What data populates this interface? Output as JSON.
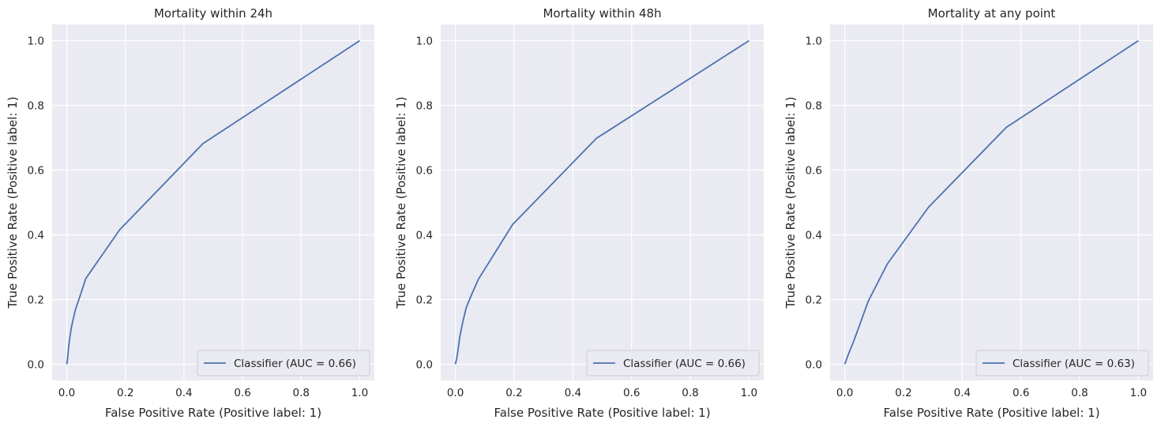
{
  "chart_data": [
    {
      "type": "line",
      "title": "Mortality within 24h",
      "xlabel": "False Positive Rate (Positive label: 1)",
      "ylabel": "True Positive Rate (Positive label: 1)",
      "xlim": [
        -0.05,
        1.05
      ],
      "ylim": [
        -0.05,
        1.05
      ],
      "xticks": [
        "0.0",
        "0.2",
        "0.4",
        "0.6",
        "0.8",
        "1.0"
      ],
      "yticks": [
        "0.0",
        "0.2",
        "0.4",
        "0.6",
        "0.8",
        "1.0"
      ],
      "grid": true,
      "legend_position": "lower right",
      "series": [
        {
          "name": "Classifier (AUC = 0.66)",
          "color": "#4c72b0",
          "x": [
            0.0,
            0.003,
            0.006,
            0.01,
            0.015,
            0.022,
            0.03,
            0.045,
            0.065,
            0.18,
            0.465,
            1.0
          ],
          "y": [
            0.0,
            0.02,
            0.05,
            0.08,
            0.11,
            0.14,
            0.17,
            0.21,
            0.265,
            0.415,
            0.682,
            1.0
          ]
        }
      ]
    },
    {
      "type": "line",
      "title": "Mortality within 48h",
      "xlabel": "False Positive Rate (Positive label: 1)",
      "ylabel": "True Positive Rate (Positive label: 1)",
      "xlim": [
        -0.05,
        1.05
      ],
      "ylim": [
        -0.05,
        1.05
      ],
      "xticks": [
        "0.0",
        "0.2",
        "0.4",
        "0.6",
        "0.8",
        "1.0"
      ],
      "yticks": [
        "0.0",
        "0.2",
        "0.4",
        "0.6",
        "0.8",
        "1.0"
      ],
      "grid": true,
      "legend_position": "lower right",
      "series": [
        {
          "name": "Classifier (AUC = 0.66)",
          "color": "#4c72b0",
          "x": [
            0.0,
            0.005,
            0.01,
            0.015,
            0.025,
            0.037,
            0.055,
            0.078,
            0.195,
            0.48,
            1.0
          ],
          "y": [
            0.0,
            0.02,
            0.05,
            0.085,
            0.13,
            0.175,
            0.215,
            0.262,
            0.432,
            0.698,
            1.0
          ]
        }
      ]
    },
    {
      "type": "line",
      "title": "Mortality at any point",
      "xlabel": "False Positive Rate (Positive label: 1)",
      "ylabel": "True Positive Rate (Positive label: 1)",
      "xlim": [
        -0.05,
        1.05
      ],
      "ylim": [
        -0.05,
        1.05
      ],
      "xticks": [
        "0.0",
        "0.2",
        "0.4",
        "0.6",
        "0.8",
        "1.0"
      ],
      "yticks": [
        "0.0",
        "0.2",
        "0.4",
        "0.6",
        "0.8",
        "1.0"
      ],
      "grid": true,
      "legend_position": "lower right",
      "series": [
        {
          "name": "Classifier (AUC = 0.63)",
          "color": "#4c72b0",
          "x": [
            0.0,
            0.012,
            0.03,
            0.05,
            0.08,
            0.145,
            0.285,
            0.55,
            1.0
          ],
          "y": [
            0.0,
            0.03,
            0.07,
            0.12,
            0.195,
            0.31,
            0.485,
            0.732,
            1.0
          ]
        }
      ]
    }
  ]
}
